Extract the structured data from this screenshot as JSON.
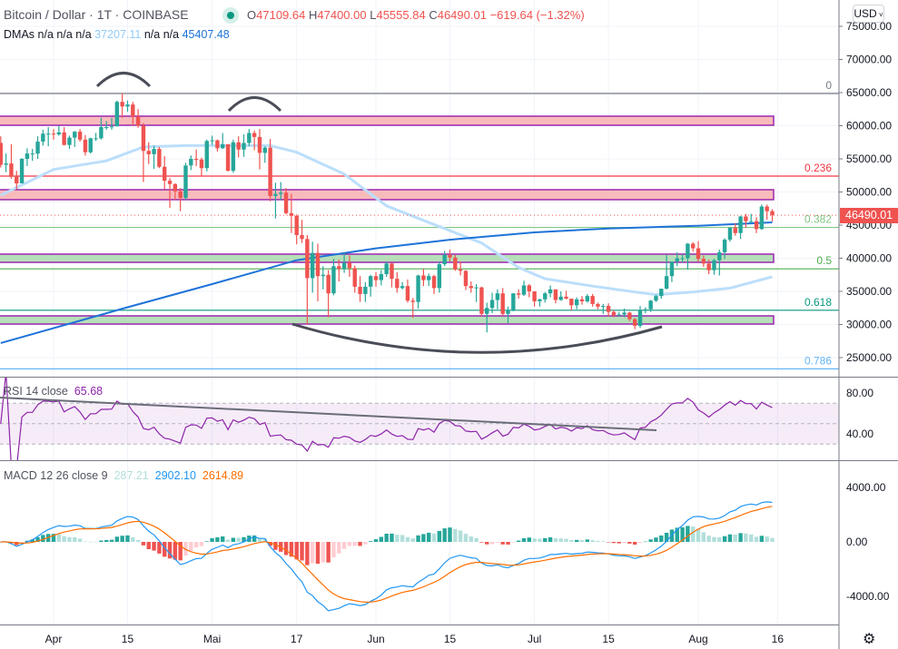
{
  "header": {
    "symbol": "Bitcoin / Dollar · 1T · COINBASE",
    "market_status_icon": "market-open-dot",
    "ohlc": {
      "o_label": "O",
      "o": "47109.64",
      "h_label": "H",
      "h": "47400.00",
      "l_label": "L",
      "l": "45555.84",
      "c_label": "C",
      "c": "46490.01",
      "change": "−619.64 (−1.32%)"
    }
  },
  "indicators": {
    "dma": {
      "label": "DMAs",
      "values": [
        "n/a",
        "n/a",
        "n/a",
        "37207.11",
        "n/a",
        "n/a",
        "45407.48"
      ]
    },
    "rsi": {
      "label": "RSI 14 close",
      "value": "65.68"
    },
    "macd": {
      "label": "MACD 12 26 close 9",
      "histogram": "287.21",
      "macd": "2902.10",
      "signal": "2614.89"
    }
  },
  "currency_button": "USD",
  "last_price_label": "46490.01",
  "settings_icon": "gear-icon",
  "colors": {
    "up": "#26a69a",
    "down": "#ef5350",
    "ma_fast": "#bbdefb",
    "ma_slow": "#1e73d8",
    "rsi": "#8e24aa",
    "macd": "#2196f3",
    "signal": "#ff6d00",
    "zone_resistance": "#f8bbbb",
    "zone_support": "#b7dfb9",
    "zone_border": "#9c27b0"
  },
  "chart_data": [
    {
      "type": "candlestick",
      "interval": "1D",
      "date_range": [
        "Mar 22",
        "Aug 15"
      ],
      "columns": [
        "open",
        "high",
        "low",
        "close"
      ],
      "rows": [
        [
          57400,
          58400,
          53700,
          54100
        ],
        [
          54100,
          55800,
          53000,
          54300
        ],
        [
          54300,
          57200,
          52000,
          52300
        ],
        [
          52300,
          53200,
          50400,
          51300
        ],
        [
          51300,
          55100,
          51300,
          55000
        ],
        [
          55000,
          56600,
          53900,
          55800
        ],
        [
          55800,
          56500,
          54700,
          55800
        ],
        [
          55800,
          58400,
          55000,
          57600
        ],
        [
          57600,
          59400,
          57000,
          58800
        ],
        [
          58800,
          59800,
          56900,
          58800
        ],
        [
          58800,
          59500,
          57900,
          58700
        ],
        [
          58700,
          60000,
          58500,
          59000
        ],
        [
          59000,
          59800,
          57000,
          57100
        ],
        [
          57100,
          58500,
          56500,
          58200
        ],
        [
          58200,
          59200,
          56800,
          59100
        ],
        [
          59100,
          59500,
          57600,
          57900
        ],
        [
          57900,
          58600,
          55500,
          56000
        ],
        [
          56000,
          58200,
          55800,
          58100
        ],
        [
          58100,
          58900,
          57700,
          58100
        ],
        [
          58100,
          61200,
          57900,
          59800
        ],
        [
          59800,
          60700,
          59400,
          59800
        ],
        [
          59800,
          61200,
          59400,
          59900
        ],
        [
          59900,
          63800,
          59900,
          63600
        ],
        [
          63600,
          64900,
          61200,
          62900
        ],
        [
          62900,
          63800,
          62100,
          63200
        ],
        [
          63200,
          63600,
          60000,
          61400
        ],
        [
          61400,
          62500,
          59700,
          60000
        ],
        [
          60000,
          60400,
          51500,
          56200
        ],
        [
          56200,
          57500,
          54200,
          55700
        ],
        [
          55700,
          57000,
          53500,
          56500
        ],
        [
          56500,
          56800,
          53600,
          53800
        ],
        [
          53800,
          55400,
          50400,
          51700
        ],
        [
          51700,
          52100,
          47600,
          51200
        ],
        [
          51200,
          51300,
          48800,
          50100
        ],
        [
          50100,
          50600,
          47100,
          49100
        ],
        [
          49100,
          54400,
          48800,
          54000
        ],
        [
          54000,
          55500,
          53300,
          55000
        ],
        [
          55000,
          56400,
          53900,
          54900
        ],
        [
          54900,
          55200,
          52400,
          53600
        ],
        [
          53600,
          57900,
          53100,
          57700
        ],
        [
          57700,
          58500,
          57100,
          57800
        ],
        [
          57800,
          57900,
          56100,
          56600
        ],
        [
          56600,
          58900,
          56500,
          57200
        ],
        [
          57200,
          57200,
          53100,
          53200
        ],
        [
          53200,
          57900,
          52900,
          57500
        ],
        [
          57500,
          58400,
          55200,
          56400
        ],
        [
          56400,
          58700,
          55300,
          57400
        ],
        [
          57400,
          59500,
          56900,
          58900
        ],
        [
          58900,
          59300,
          56300,
          58300
        ],
        [
          58300,
          59500,
          53400,
          55900
        ],
        [
          55900,
          56900,
          54400,
          56700
        ],
        [
          56700,
          58000,
          48600,
          49400
        ],
        [
          49400,
          51400,
          46000,
          49700
        ],
        [
          49700,
          51500,
          48800,
          49900
        ],
        [
          49900,
          50600,
          46600,
          46800
        ],
        [
          46800,
          49700,
          43800,
          46400
        ],
        [
          46400,
          46600,
          42100,
          43500
        ],
        [
          43500,
          45800,
          42300,
          42900
        ],
        [
          42900,
          43500,
          30000,
          37000
        ],
        [
          37000,
          42500,
          34800,
          40800
        ],
        [
          40800,
          42200,
          33500,
          37300
        ],
        [
          37300,
          38800,
          35300,
          37500
        ],
        [
          37500,
          38200,
          31100,
          34700
        ],
        [
          34700,
          39900,
          34400,
          38800
        ],
        [
          38800,
          39800,
          36500,
          38400
        ],
        [
          38400,
          40800,
          37800,
          39300
        ],
        [
          39300,
          40400,
          37200,
          38500
        ],
        [
          38500,
          38900,
          34800,
          35700
        ],
        [
          35700,
          37300,
          33400,
          34600
        ],
        [
          34600,
          36400,
          33400,
          35700
        ],
        [
          35700,
          37500,
          34200,
          37300
        ],
        [
          37300,
          37900,
          35700,
          36700
        ],
        [
          36700,
          38200,
          35900,
          37600
        ],
        [
          37600,
          39500,
          37200,
          39200
        ],
        [
          39200,
          39300,
          35600,
          36900
        ],
        [
          36900,
          37900,
          34800,
          35500
        ],
        [
          35500,
          36400,
          35300,
          35800
        ],
        [
          35800,
          36800,
          33300,
          33600
        ],
        [
          33600,
          34000,
          31000,
          33400
        ],
        [
          33400,
          37500,
          32400,
          37400
        ],
        [
          37400,
          38400,
          35800,
          36700
        ],
        [
          36700,
          37700,
          35800,
          37300
        ],
        [
          37300,
          37500,
          34600,
          35500
        ],
        [
          35500,
          39400,
          34800,
          39100
        ],
        [
          39100,
          41100,
          38800,
          40500
        ],
        [
          40500,
          41300,
          39500,
          40100
        ],
        [
          40100,
          40500,
          38100,
          38300
        ],
        [
          38300,
          39500,
          37400,
          38100
        ],
        [
          38100,
          38200,
          35200,
          35800
        ],
        [
          35800,
          36500,
          34800,
          35500
        ],
        [
          35500,
          36100,
          33400,
          35600
        ],
        [
          35600,
          35700,
          31300,
          31600
        ],
        [
          31600,
          33300,
          28800,
          32500
        ],
        [
          32500,
          34800,
          31700,
          33700
        ],
        [
          33700,
          35300,
          32300,
          34700
        ],
        [
          34700,
          35500,
          31300,
          31600
        ],
        [
          31600,
          32700,
          30200,
          32200
        ],
        [
          32200,
          34700,
          32000,
          34700
        ],
        [
          34700,
          35300,
          33900,
          34500
        ],
        [
          34500,
          36600,
          34300,
          35900
        ],
        [
          35900,
          36100,
          34100,
          35000
        ],
        [
          35000,
          35000,
          32700,
          33500
        ],
        [
          33500,
          33900,
          32700,
          33800
        ],
        [
          33800,
          34900,
          33300,
          34700
        ],
        [
          34700,
          35900,
          34100,
          35300
        ],
        [
          35300,
          35300,
          33200,
          33700
        ],
        [
          33700,
          35000,
          33600,
          34200
        ],
        [
          34200,
          35100,
          33800,
          33900
        ],
        [
          33900,
          33900,
          32100,
          32900
        ],
        [
          32900,
          34100,
          32300,
          33800
        ],
        [
          33800,
          34300,
          33000,
          33500
        ],
        [
          33500,
          34600,
          33300,
          34300
        ],
        [
          34300,
          34600,
          32700,
          33100
        ],
        [
          33100,
          33300,
          32300,
          32700
        ],
        [
          32700,
          33100,
          31600,
          32800
        ],
        [
          32800,
          33200,
          31200,
          31900
        ],
        [
          31900,
          32200,
          31100,
          31400
        ],
        [
          31400,
          31900,
          31200,
          31500
        ],
        [
          31500,
          32400,
          31100,
          31800
        ],
        [
          31800,
          31900,
          30500,
          30800
        ],
        [
          30800,
          31000,
          29300,
          29800
        ],
        [
          29800,
          32800,
          29500,
          32100
        ],
        [
          32100,
          32600,
          31700,
          32300
        ],
        [
          32300,
          33700,
          31900,
          33600
        ],
        [
          33600,
          34500,
          33400,
          34300
        ],
        [
          34300,
          35400,
          33900,
          35400
        ],
        [
          35400,
          40500,
          35300,
          37300
        ],
        [
          37300,
          39500,
          36400,
          39500
        ],
        [
          39500,
          40900,
          38800,
          40000
        ],
        [
          40000,
          40600,
          39300,
          40000
        ],
        [
          40000,
          42300,
          38300,
          42200
        ],
        [
          42200,
          42400,
          41000,
          41500
        ],
        [
          41500,
          42600,
          39500,
          39900
        ],
        [
          39900,
          40400,
          38700,
          39200
        ],
        [
          39200,
          39800,
          37600,
          38200
        ],
        [
          38200,
          39900,
          37500,
          39700
        ],
        [
          39700,
          41300,
          37400,
          40900
        ],
        [
          40900,
          43000,
          39900,
          42800
        ],
        [
          42800,
          44700,
          42500,
          44600
        ],
        [
          44600,
          45300,
          43400,
          43800
        ],
        [
          43800,
          46400,
          42900,
          46300
        ],
        [
          46300,
          46700,
          44600,
          45600
        ],
        [
          45600,
          46700,
          45300,
          45600
        ],
        [
          45600,
          46200,
          43800,
          44400
        ],
        [
          44400,
          48100,
          44300,
          47800
        ],
        [
          47800,
          48100,
          45800,
          47100
        ],
        [
          47109.64,
          47400,
          45555.84,
          46490.01
        ]
      ],
      "moving_averages": [
        {
          "name": "37207.11",
          "points": [
            [
              "Mar 22",
              49500
            ],
            [
              "Apr 1",
              53400
            ],
            [
              "Apr 11",
              54700
            ],
            [
              "Apr 18",
              56800
            ],
            [
              "Apr 26",
              57000
            ],
            [
              "May 12",
              57000
            ],
            [
              "May 17",
              56000
            ],
            [
              "May 26",
              52700
            ],
            [
              "Jun 3",
              47900
            ],
            [
              "Jun 12",
              45100
            ],
            [
              "Jun 21",
              42300
            ],
            [
              "Jun 28",
              38600
            ],
            [
              "Jul 3",
              36900
            ],
            [
              "Jul 12",
              35800
            ],
            [
              "Jul 20",
              34900
            ],
            [
              "Jul 24",
              34500
            ],
            [
              "Jul 31",
              34900
            ],
            [
              "Aug 7",
              35500
            ],
            [
              "Aug 15",
              37207.11
            ]
          ]
        },
        {
          "name": "45407.48",
          "points": [
            [
              "Mar 22",
              27200
            ],
            [
              "Apr 15",
              32600
            ],
            [
              "May 1",
              36100
            ],
            [
              "May 17",
              39700
            ],
            [
              "Jun 1",
              41500
            ],
            [
              "Jun 15",
              42800
            ],
            [
              "Jul 1",
              43900
            ],
            [
              "Jul 15",
              44500
            ],
            [
              "Aug 1",
              44900
            ],
            [
              "Aug 15",
              45407.48
            ]
          ]
        }
      ],
      "fib_levels": [
        {
          "label": "0",
          "value": 64860,
          "color": "#787b86"
        },
        {
          "label": "0.236",
          "value": 52400,
          "color": "#f23645"
        },
        {
          "label": "0.382",
          "value": 44650,
          "color": "#81c784"
        },
        {
          "label": "0.5",
          "value": 38400,
          "color": "#4caf50"
        },
        {
          "label": "0.618",
          "value": 32150,
          "color": "#089981"
        },
        {
          "label": "0.786",
          "value": 23300,
          "color": "#64b5f6"
        }
      ],
      "zones": [
        {
          "kind": "resistance",
          "low": 60070,
          "high": 61440
        },
        {
          "kind": "resistance",
          "low": 48840,
          "high": 50340
        },
        {
          "kind": "support",
          "low": 39380,
          "high": 40620
        },
        {
          "kind": "support",
          "low": 30070,
          "high": 31300
        }
      ],
      "last_price": 46490.01,
      "ylim": [
        25000,
        75000
      ],
      "y_ticks": [
        "75000.00",
        "70000.00",
        "65000.00",
        "60000.00",
        "55000.00",
        "50000.00",
        "45000.00",
        "40000.00",
        "35000.00",
        "30000.00",
        "25000.00"
      ],
      "x_ticks": [
        [
          "Apr 1",
          "Apr"
        ],
        [
          "Apr 15",
          "15"
        ],
        [
          "May 1",
          "Mai"
        ],
        [
          "May 17",
          "17"
        ],
        [
          "Jun 1",
          "Jun"
        ],
        [
          "Jun 15",
          "15"
        ],
        [
          "Jul 1",
          "Jul"
        ],
        [
          "Jul 15",
          "15"
        ],
        [
          "Aug 1",
          "Aug"
        ],
        [
          "Aug 16",
          "16"
        ]
      ],
      "grid": true
    },
    {
      "type": "line",
      "indicator": "RSI 14 close",
      "bands": [
        30,
        50,
        70
      ],
      "y_ticks": [
        "80.00",
        "40.00"
      ],
      "ylim": [
        20,
        90
      ]
    },
    {
      "type": "bar+line",
      "indicator": "MACD 12 26 close 9",
      "y_ticks": [
        "4000.00",
        "0.00",
        "-4000.00"
      ],
      "ylim": [
        -5800,
        5800
      ]
    }
  ]
}
